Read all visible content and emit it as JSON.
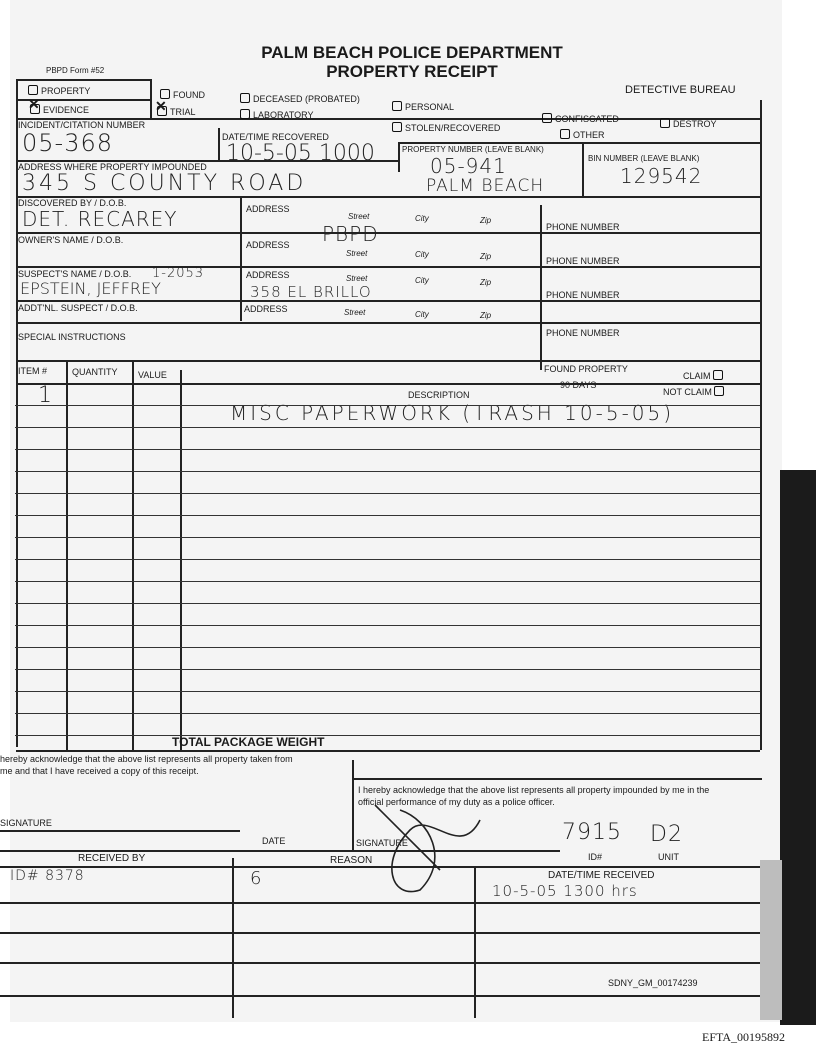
{
  "header": {
    "title": "PALM BEACH POLICE DEPARTMENT",
    "subtitle": "PROPERTY RECEIPT",
    "form_number": "PBPD Form #52",
    "bureau": "DETECTIVE BUREAU"
  },
  "checkboxes": [
    {
      "label": "PROPERTY",
      "checked": false
    },
    {
      "label": "FOUND",
      "checked": false
    },
    {
      "label": "DECEASED (Probated)",
      "checked": false
    },
    {
      "label": "PERSONAL",
      "checked": false
    },
    {
      "label": "EVIDENCE",
      "checked": true
    },
    {
      "label": "TRIAL",
      "checked": true
    },
    {
      "label": "LABORATORY",
      "checked": false
    },
    {
      "label": "CONFISCATED",
      "checked": false
    },
    {
      "label": "DESTROY",
      "checked": false
    },
    {
      "label": "STOLEN/RECOVERED",
      "checked": false
    },
    {
      "label": "OTHER",
      "checked": false
    }
  ],
  "fields": {
    "incident_label": "INCIDENT/CITATION NUMBER",
    "incident": "05-368",
    "date_label": "DATE/TIME RECOVERED",
    "date": "10-5-05 1000",
    "property_label": "PROPERTY NUMBER (Leave Blank)",
    "property": "05-941",
    "bin_label": "BIN NUMBER (Leave Blank)",
    "bin": "129542",
    "address_label": "ADDRESS WHERE PROPERTY IMPOUNDED",
    "address": "345 S COUNTY ROAD",
    "address_city": "PALM BEACH",
    "discovered_label": "DISCOVERED BY / D.O.B.",
    "discovered": "DET. RECAREY",
    "owner_label": "OWNER'S NAME / D.O.B.",
    "suspect_label": "SUSPECT'S NAME / D.O.B.",
    "suspect": "EPSTEIN, JEFFREY",
    "suspect_dob": "1-2053",
    "addl_label": "ADDT'NL. SUSPECT / D.O.B.",
    "special_label": "SPECIAL INSTRUCTIONS",
    "address_word": "ADDRESS",
    "street": "Street",
    "city": "City",
    "zip": "Zip",
    "phone": "PHONE NUMBER",
    "addr1": "PBPD",
    "addr3": "358 EL BRILLO"
  },
  "items": {
    "headers": {
      "item": "ITEM #",
      "quantity": "QUANTITY",
      "value": "VALUE",
      "description": "DESCRIPTION"
    },
    "found": "FOUND PROPERTY",
    "days": "90 DAYS",
    "claim": "CLAIM",
    "not_claim": "NOT CLAIM",
    "rows": [
      {
        "item": "1",
        "description": "MISC PAPERWORK (TRASH 10-5-05)"
      }
    ],
    "total": "TOTAL PACKAGE WEIGHT"
  },
  "ack": {
    "left": "hereby acknowledge that the above list represents all property taken from me and that I have received a copy of this receipt.",
    "right": "I hereby acknowledge that the above list represents all property impounded by me in the official performance of my duty as a police officer.",
    "signature": "SIGNATURE",
    "date": "DATE",
    "id_label": "ID#",
    "id": "7915",
    "unit_label": "UNIT",
    "unit": "D2"
  },
  "received": {
    "by_label": "RECEIVED BY",
    "by": "ID# 8378",
    "reason_label": "REASON",
    "reason": "6",
    "dt_label": "DATE/TIME RECEIVED",
    "dt": "10-5-05 1300 hrs"
  },
  "stamps": {
    "bates": "SDNY_GM_00174239",
    "efta": "EFTA_00195892"
  }
}
